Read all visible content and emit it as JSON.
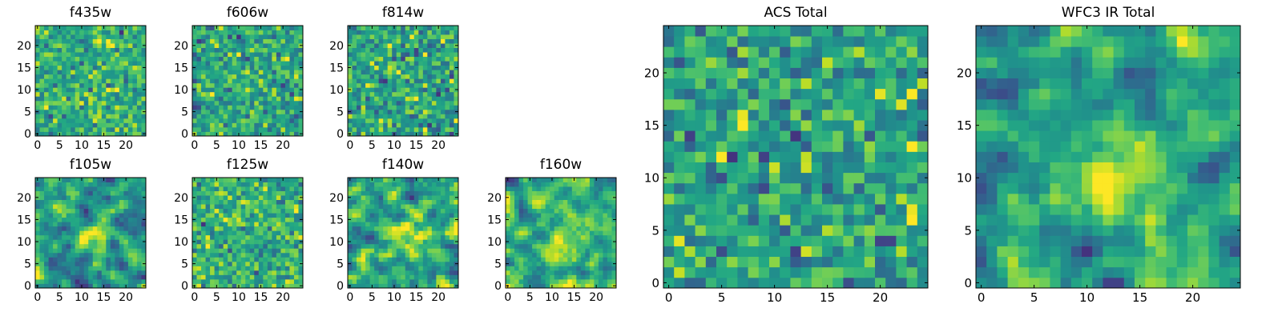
{
  "colors": {
    "colormap": "viridis",
    "dark": "#440154",
    "mid": "#21918c",
    "light": "#fde725",
    "frame": "#000000",
    "background": "#ffffff"
  },
  "chart_data": [
    {
      "type": "heatmap",
      "title": "f435w",
      "grid_size": 25,
      "xlim": [
        -0.5,
        24.5
      ],
      "ylim": [
        -0.5,
        24.5
      ],
      "xticks": [
        "0",
        "5",
        "10",
        "15",
        "20"
      ],
      "yticks": [
        "0",
        "5",
        "10",
        "15",
        "20"
      ],
      "pattern": "noise",
      "seed": 11
    },
    {
      "type": "heatmap",
      "title": "f606w",
      "grid_size": 25,
      "xlim": [
        -0.5,
        24.5
      ],
      "ylim": [
        -0.5,
        24.5
      ],
      "xticks": [
        "0",
        "5",
        "10",
        "15",
        "20"
      ],
      "yticks": [
        "0",
        "5",
        "10",
        "15",
        "20"
      ],
      "pattern": "noise",
      "seed": 23
    },
    {
      "type": "heatmap",
      "title": "f814w",
      "grid_size": 25,
      "xlim": [
        -0.5,
        24.5
      ],
      "ylim": [
        -0.5,
        24.5
      ],
      "xticks": [
        "0",
        "5",
        "10",
        "15",
        "20"
      ],
      "yticks": [
        "0",
        "5",
        "10",
        "15",
        "20"
      ],
      "pattern": "noise",
      "seed": 37
    },
    {
      "type": "heatmap",
      "title": "f105w",
      "grid_size": 25,
      "xlim": [
        -0.5,
        24.5
      ],
      "ylim": [
        -0.5,
        24.5
      ],
      "xticks": [
        "0",
        "5",
        "10",
        "15",
        "20"
      ],
      "yticks": [
        "0",
        "5",
        "10",
        "15",
        "20"
      ],
      "pattern": "source",
      "seed": 41
    },
    {
      "type": "heatmap",
      "title": "f125w",
      "grid_size": 25,
      "xlim": [
        -0.5,
        24.5
      ],
      "ylim": [
        -0.5,
        24.5
      ],
      "xticks": [
        "0",
        "5",
        "10",
        "15",
        "20"
      ],
      "yticks": [
        "0",
        "5",
        "10",
        "15",
        "20"
      ],
      "pattern": "noise",
      "seed": 53
    },
    {
      "type": "heatmap",
      "title": "f140w",
      "grid_size": 25,
      "xlim": [
        -0.5,
        24.5
      ],
      "ylim": [
        -0.5,
        24.5
      ],
      "xticks": [
        "0",
        "5",
        "10",
        "15",
        "20"
      ],
      "yticks": [
        "0",
        "5",
        "10",
        "15",
        "20"
      ],
      "pattern": "source",
      "seed": 67
    },
    {
      "type": "heatmap",
      "title": "f160w",
      "grid_size": 25,
      "xlim": [
        -0.5,
        24.5
      ],
      "ylim": [
        -0.5,
        24.5
      ],
      "xticks": [
        "0",
        "5",
        "10",
        "15",
        "20"
      ],
      "yticks": [
        "0",
        "5",
        "10",
        "15",
        "20"
      ],
      "pattern": "source",
      "seed": 79
    },
    {
      "type": "heatmap",
      "title": "ACS Total",
      "grid_size": 25,
      "xlim": [
        -0.5,
        24.5
      ],
      "ylim": [
        -0.5,
        24.5
      ],
      "xticks": [
        "0",
        "5",
        "10",
        "15",
        "20"
      ],
      "yticks": [
        "0",
        "5",
        "10",
        "15",
        "20"
      ],
      "pattern": "noise",
      "seed": 97
    },
    {
      "type": "heatmap",
      "title": "WFC3 IR Total",
      "grid_size": 25,
      "xlim": [
        -0.5,
        24.5
      ],
      "ylim": [
        -0.5,
        24.5
      ],
      "xticks": [
        "0",
        "5",
        "10",
        "15",
        "20"
      ],
      "yticks": [
        "0",
        "5",
        "10",
        "15",
        "20"
      ],
      "pattern": "source",
      "seed": 101
    }
  ]
}
